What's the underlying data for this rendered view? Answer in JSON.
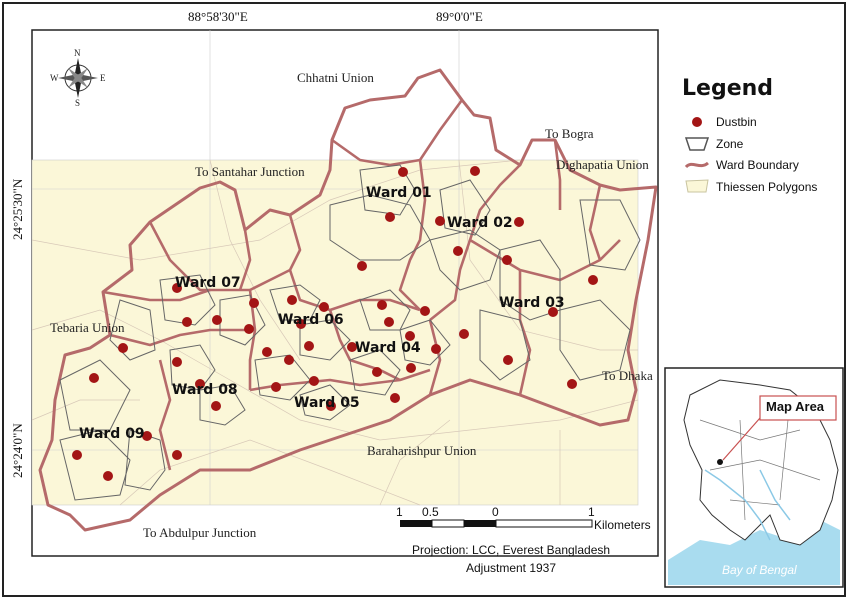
{
  "coordinates": {
    "lon_1": "88°58'30\"E",
    "lon_2": "89°0'0\"E",
    "lat_1": "24°25'30\"N",
    "lat_2": "24°24'0\"N"
  },
  "north_arrow": {
    "n": "N",
    "s": "S",
    "e": "E",
    "w": "W"
  },
  "legend": {
    "title": "Legend",
    "items": [
      {
        "label": "Dustbin",
        "symbol": "dot",
        "color": "#a31515"
      },
      {
        "label": "Zone",
        "symbol": "outline",
        "color": "#555555"
      },
      {
        "label": "Ward Boundary",
        "symbol": "line",
        "color": "#b56a6a"
      },
      {
        "label": "Thiessen Polygons",
        "symbol": "fill",
        "color": "#fbf7d8"
      }
    ]
  },
  "places": [
    "Chhatni Union",
    "To Bogra",
    "Dighapatia Union",
    "To Santahar Junction",
    "Tebaria Union",
    "To Dhaka",
    "Baraharishpur Union",
    "To Abdulpur Junction"
  ],
  "wards": [
    "Ward 01",
    "Ward 02",
    "Ward 03",
    "Ward 04",
    "Ward 05",
    "Ward 06",
    "Ward 07",
    "Ward 08",
    "Ward 09"
  ],
  "scale": {
    "ticks": [
      "1",
      "0.5",
      "0",
      "1"
    ],
    "unit": "Kilometers"
  },
  "projection": {
    "line1": "Projection: LCC, Everest Bangladesh",
    "line2": "Adjustment 1937"
  },
  "inset": {
    "map_area": "Map Area",
    "bay": "Bay of Bengal"
  },
  "colors": {
    "thiessen_fill": "#fbf7d8",
    "ward_boundary": "#b56a6a",
    "dustbin": "#a31515",
    "zone_line": "#555555",
    "water": "#a9dcef"
  }
}
